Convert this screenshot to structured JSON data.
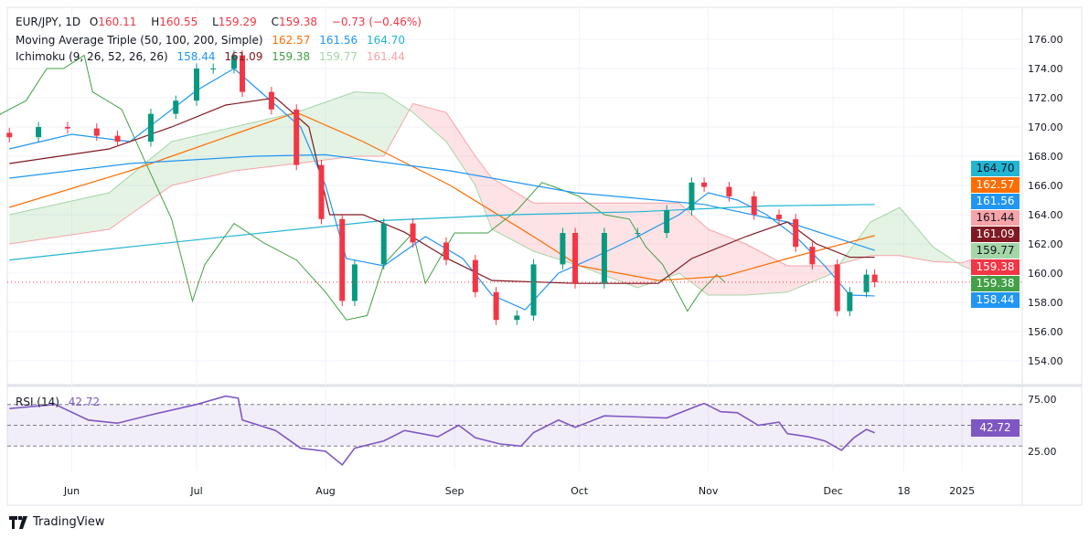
{
  "legend": {
    "symbol": "EUR/JPY, 1D",
    "o_label": "O",
    "o": "160.11",
    "h_label": "H",
    "h": "160.55",
    "l_label": "L",
    "l": "159.29",
    "c_label": "C",
    "c": "159.38",
    "change": "−0.73 (−0.46%)",
    "ma_title": "Moving Average Triple (50, 100, 200, Simple)",
    "ma50": "162.57",
    "ma100": "161.56",
    "ma200": "164.70",
    "ichi_title": "Ichimoku (9, 26, 52, 26, 26)",
    "tenkan": "158.44",
    "kijun": "161.09",
    "chikou": "159.38",
    "spanA": "159.77",
    "spanB": "161.44",
    "rsi_title": "RSI (14)",
    "rsi": "42.72"
  },
  "price_tags": [
    {
      "v": "164.70",
      "bg": "#22b5d4",
      "fg": "#131722"
    },
    {
      "v": "162.57",
      "bg": "#ff6d00",
      "fg": "#fff"
    },
    {
      "v": "161.56",
      "bg": "#2196f3",
      "fg": "#fff"
    },
    {
      "v": "161.44",
      "bg": "#f7a3a8",
      "fg": "#131722"
    },
    {
      "v": "161.09",
      "bg": "#801922",
      "fg": "#fff"
    },
    {
      "v": "159.77",
      "bg": "#a5d6a7",
      "fg": "#131722"
    },
    {
      "v": "159.38",
      "bg": "#f23645",
      "fg": "#fff"
    },
    {
      "v": "159.38",
      "bg": "#43a047",
      "fg": "#fff"
    },
    {
      "v": "158.44",
      "bg": "#2196f3",
      "fg": "#fff"
    }
  ],
  "footer": {
    "brand": "TradingView"
  },
  "chart_data": [
    {
      "type": "candlestick",
      "title": "EUR/JPY, 1D",
      "ylim": [
        153,
        177
      ],
      "y_ticks": [
        "154.00",
        "156.00",
        "158.00",
        "160.00",
        "162.00",
        "164.00",
        "166.00",
        "168.00",
        "170.00",
        "172.00",
        "174.00",
        "176.00"
      ],
      "x_ticks": [
        "Jun",
        "Jul",
        "Aug",
        "Sep",
        "Oct",
        "Nov",
        "Dec",
        "18",
        "2025"
      ],
      "colors": {
        "up": "#089981",
        "down": "#f23645",
        "ma50": "#ff6d00",
        "ma100": "#2196f3",
        "ma200": "#22b5d4",
        "tenkan": "#2196f3",
        "kijun": "#801922",
        "chikou": "#43a047",
        "cloud_up": "#a5d6a7",
        "cloud_down": "#f7a3a8"
      },
      "closes": [
        [
          "2024-05-17",
          169.3
        ],
        [
          "2024-05-24",
          170.0
        ],
        [
          "2024-05-31",
          169.9
        ],
        [
          "2024-06-07",
          169.4
        ],
        [
          "2024-06-12",
          169.0
        ],
        [
          "2024-06-20",
          170.9
        ],
        [
          "2024-06-26",
          171.8
        ],
        [
          "2024-07-01",
          174.0
        ],
        [
          "2024-07-05",
          174.0
        ],
        [
          "2024-07-10",
          174.9
        ],
        [
          "2024-07-12",
          172.4
        ],
        [
          "2024-07-19",
          171.2
        ],
        [
          "2024-07-25",
          167.4
        ],
        [
          "2024-07-31",
          163.7
        ],
        [
          "2024-08-05",
          158.1
        ],
        [
          "2024-08-08",
          160.6
        ],
        [
          "2024-08-15",
          163.4
        ],
        [
          "2024-08-22",
          162.1
        ],
        [
          "2024-08-30",
          160.9
        ],
        [
          "2024-09-06",
          158.7
        ],
        [
          "2024-09-11",
          156.8
        ],
        [
          "2024-09-16",
          157.1
        ],
        [
          "2024-09-20",
          160.6
        ],
        [
          "2024-09-27",
          162.75
        ],
        [
          "2024-09-30",
          159.3
        ],
        [
          "2024-10-07",
          162.75
        ],
        [
          "2024-10-15",
          162.75
        ],
        [
          "2024-10-22",
          164.3
        ],
        [
          "2024-10-28",
          166.2
        ],
        [
          "2024-10-31",
          165.9
        ],
        [
          "2024-11-06",
          165.25
        ],
        [
          "2024-11-12",
          164.0
        ],
        [
          "2024-11-18",
          163.7
        ],
        [
          "2024-11-22",
          161.8
        ],
        [
          "2024-11-26",
          160.6
        ],
        [
          "2024-12-02",
          157.4
        ],
        [
          "2024-12-05",
          158.7
        ],
        [
          "2024-12-09",
          159.9
        ],
        [
          "2024-12-11",
          159.38
        ]
      ],
      "series": [
        {
          "name": "50",
          "key": "ma50",
          "points": [
            [
              "2024-05-17",
              164.5
            ],
            [
              "2024-06-15",
              167
            ],
            [
              "2024-07-10",
              169.5
            ],
            [
              "2024-07-25",
              171
            ],
            [
              "2024-08-10",
              169
            ],
            [
              "2024-08-31",
              166
            ],
            [
              "2024-09-20",
              162.5
            ],
            [
              "2024-10-01",
              160.5
            ],
            [
              "2024-10-20",
              159.5
            ],
            [
              "2024-11-05",
              159.8
            ],
            [
              "2024-11-20",
              161
            ],
            [
              "2024-12-11",
              162.57
            ]
          ]
        },
        {
          "name": "100",
          "key": "ma100",
          "points": [
            [
              "2024-05-17",
              166.5
            ],
            [
              "2024-06-15",
              167.5
            ],
            [
              "2024-07-15",
              168
            ],
            [
              "2024-08-01",
              168.1
            ],
            [
              "2024-08-31",
              167
            ],
            [
              "2024-09-30",
              165.5
            ],
            [
              "2024-10-31",
              164.7
            ],
            [
              "2024-11-20",
              163.5
            ],
            [
              "2024-12-11",
              161.56
            ]
          ]
        },
        {
          "name": "200",
          "key": "ma200",
          "points": [
            [
              "2024-05-17",
              160.9
            ],
            [
              "2024-06-15",
              161.8
            ],
            [
              "2024-07-15",
              162.7
            ],
            [
              "2024-08-15",
              163.6
            ],
            [
              "2024-09-15",
              164
            ],
            [
              "2024-10-15",
              164.2
            ],
            [
              "2024-11-15",
              164.6
            ],
            [
              "2024-12-11",
              164.7
            ]
          ]
        },
        {
          "key": "tenkan",
          "points": [
            [
              "2024-05-17",
              168.5
            ],
            [
              "2024-06-01",
              169.5
            ],
            [
              "2024-06-15",
              169
            ],
            [
              "2024-07-01",
              172.5
            ],
            [
              "2024-07-10",
              174
            ],
            [
              "2024-07-18",
              172
            ],
            [
              "2024-07-26",
              170
            ],
            [
              "2024-08-01",
              166
            ],
            [
              "2024-08-06",
              161
            ],
            [
              "2024-08-15",
              160.5
            ],
            [
              "2024-08-25",
              162.5
            ],
            [
              "2024-09-03",
              161
            ],
            [
              "2024-09-10",
              158.5
            ],
            [
              "2024-09-18",
              157.5
            ],
            [
              "2024-09-26",
              160
            ],
            [
              "2024-10-04",
              161
            ],
            [
              "2024-10-15",
              162.5
            ],
            [
              "2024-10-25",
              164
            ],
            [
              "2024-11-01",
              165.5
            ],
            [
              "2024-11-08",
              165
            ],
            [
              "2024-11-15",
              164
            ],
            [
              "2024-11-22",
              162.5
            ],
            [
              "2024-11-29",
              160.5
            ],
            [
              "2024-12-05",
              158.5
            ],
            [
              "2024-12-11",
              158.44
            ]
          ]
        },
        {
          "key": "kijun",
          "points": [
            [
              "2024-05-17",
              167.5
            ],
            [
              "2024-06-10",
              168.5
            ],
            [
              "2024-06-25",
              170
            ],
            [
              "2024-07-08",
              171.5
            ],
            [
              "2024-07-20",
              172
            ],
            [
              "2024-07-28",
              170
            ],
            [
              "2024-08-02",
              164
            ],
            [
              "2024-08-10",
              164
            ],
            [
              "2024-08-20",
              162.8
            ],
            [
              "2024-08-31",
              160.9
            ],
            [
              "2024-09-10",
              159.5
            ],
            [
              "2024-09-30",
              159.3
            ],
            [
              "2024-10-20",
              159.3
            ],
            [
              "2024-10-28",
              161
            ],
            [
              "2024-11-10",
              162.5
            ],
            [
              "2024-11-20",
              163.5
            ],
            [
              "2024-11-27",
              162
            ],
            [
              "2024-12-05",
              161.09
            ],
            [
              "2024-12-11",
              161.09
            ]
          ]
        }
      ],
      "cloud": [
        [
          "2024-05-17",
          164,
          162
        ],
        [
          "2024-06-10",
          165.5,
          163
        ],
        [
          "2024-06-25",
          169,
          166
        ],
        [
          "2024-07-10",
          170,
          167
        ],
        [
          "2024-07-25",
          171,
          167.5
        ],
        [
          "2024-08-08",
          172.4,
          168
        ],
        [
          "2024-08-15",
          172.3,
          168
        ],
        [
          "2024-08-22",
          171,
          171.6
        ],
        [
          "2024-08-30",
          169,
          171
        ],
        [
          "2024-09-06",
          166,
          168
        ],
        [
          "2024-09-10",
          163,
          166.5
        ],
        [
          "2024-09-20",
          161.5,
          164.8
        ],
        [
          "2024-10-01",
          160.5,
          164.8
        ],
        [
          "2024-10-15",
          159,
          164.8
        ],
        [
          "2024-10-25",
          160,
          164.8
        ],
        [
          "2024-11-01",
          158.5,
          163
        ],
        [
          "2024-11-10",
          158.5,
          162
        ],
        [
          "2024-11-20",
          158.7,
          160.5
        ],
        [
          "2024-12-01",
          160,
          160.5
        ],
        [
          "2024-12-10",
          163.5,
          161.2
        ],
        [
          "2024-12-17",
          164.5,
          161.2
        ],
        [
          "2024-12-25",
          161.8,
          160.8
        ],
        [
          "2025-01-01",
          160.5,
          160.7
        ],
        [
          "2025-01-08",
          159.77,
          161.44
        ]
      ]
    },
    {
      "type": "line",
      "title": "RSI (14)",
      "ylim": [
        0,
        100
      ],
      "y_ticks": [
        "25.00",
        "75.00"
      ],
      "bands": [
        30,
        50,
        70
      ],
      "color": "#7e57c2",
      "points": [
        [
          "2024-05-17",
          66
        ],
        [
          "2024-05-28",
          70
        ],
        [
          "2024-06-05",
          55
        ],
        [
          "2024-06-12",
          52
        ],
        [
          "2024-06-20",
          60
        ],
        [
          "2024-07-01",
          70
        ],
        [
          "2024-07-08",
          78
        ],
        [
          "2024-07-11",
          76
        ],
        [
          "2024-07-12",
          55
        ],
        [
          "2024-07-20",
          45
        ],
        [
          "2024-07-26",
          28
        ],
        [
          "2024-08-01",
          25
        ],
        [
          "2024-08-05",
          12
        ],
        [
          "2024-08-08",
          28
        ],
        [
          "2024-08-15",
          35
        ],
        [
          "2024-08-20",
          45
        ],
        [
          "2024-08-28",
          39
        ],
        [
          "2024-09-02",
          50
        ],
        [
          "2024-09-06",
          38
        ],
        [
          "2024-09-12",
          32
        ],
        [
          "2024-09-17",
          30
        ],
        [
          "2024-09-20",
          43
        ],
        [
          "2024-09-26",
          55
        ],
        [
          "2024-09-30",
          48
        ],
        [
          "2024-10-07",
          59
        ],
        [
          "2024-10-15",
          58
        ],
        [
          "2024-10-22",
          57
        ],
        [
          "2024-10-29",
          68
        ],
        [
          "2024-10-31",
          71
        ],
        [
          "2024-11-04",
          63
        ],
        [
          "2024-11-08",
          62
        ],
        [
          "2024-11-13",
          50
        ],
        [
          "2024-11-18",
          53
        ],
        [
          "2024-11-20",
          42
        ],
        [
          "2024-11-25",
          39
        ],
        [
          "2024-11-29",
          35
        ],
        [
          "2024-12-03",
          26
        ],
        [
          "2024-12-06",
          38
        ],
        [
          "2024-12-09",
          46
        ],
        [
          "2024-12-11",
          42.72
        ]
      ]
    }
  ]
}
